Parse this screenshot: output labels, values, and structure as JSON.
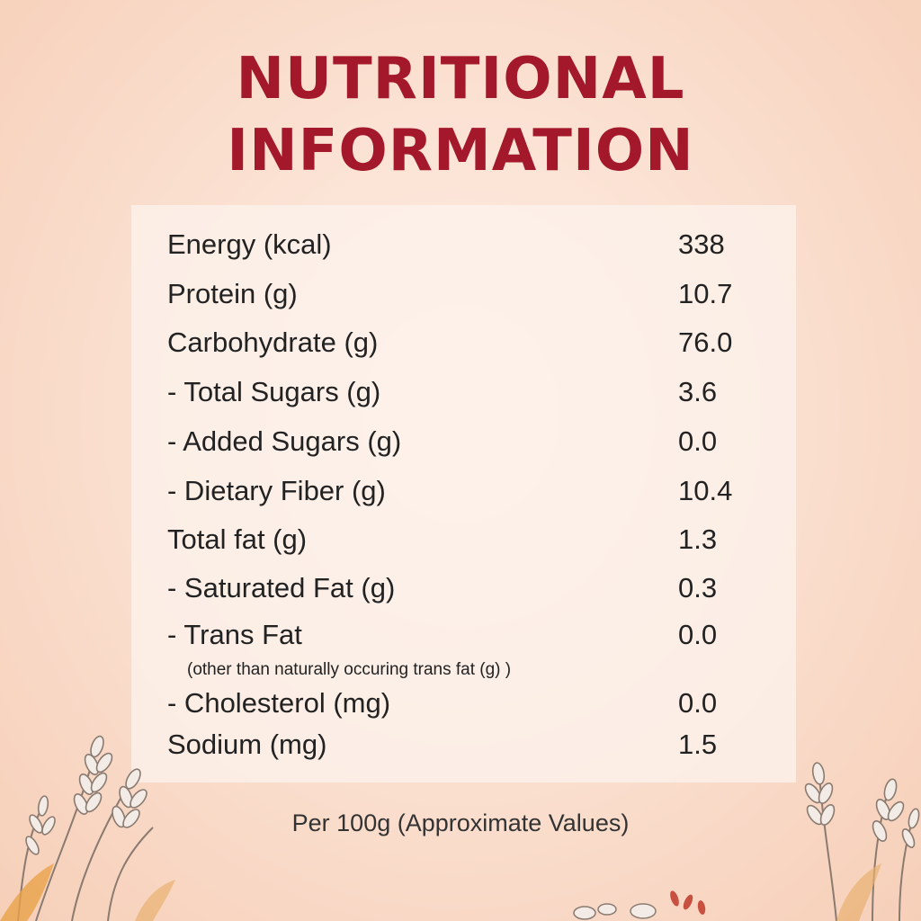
{
  "title": {
    "line1": "NUTRITIONAL",
    "line2": "INFORMATION"
  },
  "rows": [
    {
      "label": "Energy (kcal)",
      "value": "338"
    },
    {
      "label": "Protein (g)",
      "value": "10.7"
    },
    {
      "label": "Carbohydrate (g)",
      "value": "76.0"
    },
    {
      "label": "- Total Sugars (g)",
      "value": "3.6"
    },
    {
      "label": "- Added Sugars (g)",
      "value": "0.0"
    },
    {
      "label": "- Dietary Fiber (g)",
      "value": "10.4"
    },
    {
      "label": "Total fat (g)",
      "value": "1.3"
    },
    {
      "label": "- Saturated Fat (g)",
      "value": "0.3"
    },
    {
      "label": "- Trans Fat",
      "value": "0.0",
      "note": "(other than naturally occuring trans fat (g) )"
    },
    {
      "label": "- Cholesterol (mg)",
      "value": "0.0"
    },
    {
      "label": "Sodium (mg)",
      "value": "1.5"
    }
  ],
  "footer": "Per 100g (Approximate Values)",
  "colors": {
    "title": "#a3182b",
    "background": "#f9dccb",
    "panel": "#fdf2ec"
  },
  "decorations": [
    "wheat-illustration-left",
    "wheat-illustration-right",
    "grain-pile-illustration"
  ]
}
